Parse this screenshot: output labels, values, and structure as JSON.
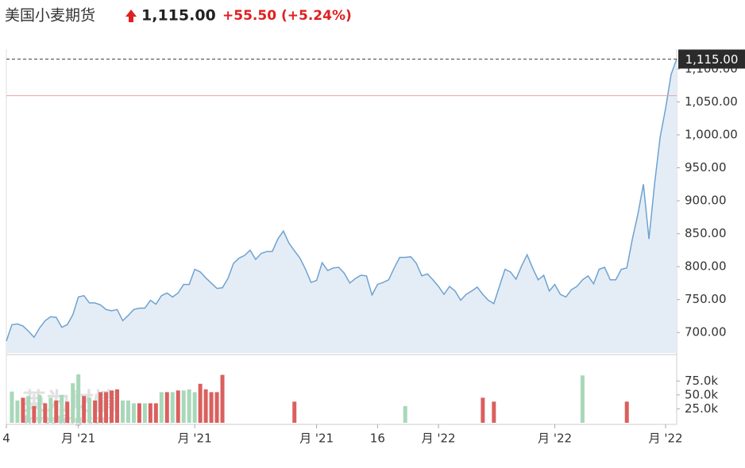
{
  "header": {
    "title": "美国小麦期货",
    "price": "1,115.00",
    "change": "+55.50",
    "change_pct": "(+5.24%)"
  },
  "chart_data": {
    "type": "area",
    "values": [
      687,
      712,
      713,
      710,
      702,
      693,
      707,
      718,
      724,
      723,
      708,
      712,
      727,
      754,
      756,
      745,
      745,
      742,
      735,
      733,
      735,
      718,
      726,
      735,
      737,
      737,
      749,
      743,
      756,
      760,
      754,
      760,
      773,
      773,
      796,
      792,
      783,
      775,
      767,
      768,
      782,
      805,
      813,
      817,
      825,
      811,
      820,
      823,
      823,
      842,
      854,
      836,
      824,
      813,
      796,
      776,
      779,
      806,
      794,
      798,
      799,
      790,
      775,
      782,
      787,
      786,
      757,
      773,
      776,
      780,
      798,
      814,
      814,
      815,
      805,
      786,
      789,
      780,
      770,
      758,
      770,
      763,
      749,
      758,
      763,
      769,
      758,
      749,
      744,
      770,
      796,
      792,
      781,
      801,
      818,
      798,
      780,
      787,
      763,
      773,
      758,
      754,
      765,
      770,
      780,
      786,
      774,
      796,
      799,
      780,
      780,
      796,
      798,
      842,
      880,
      925,
      842,
      925,
      996,
      1040,
      1092,
      1115
    ],
    "color": "#6fa2d0",
    "fill": "#e4edf6",
    "xlim": [
      0,
      121
    ],
    "xticks": [
      {
        "value": 0,
        "label": "4"
      },
      {
        "value": 13,
        "label": "月 '21"
      },
      {
        "value": 34,
        "label": "月 '21"
      },
      {
        "value": 56,
        "label": "月 '21"
      },
      {
        "value": 67,
        "label": "16"
      },
      {
        "value": 78,
        "label": "月 '22"
      },
      {
        "value": 99,
        "label": "月 '22"
      },
      {
        "value": 119,
        "label": "月 '22"
      }
    ],
    "ylim": [
      669,
      1130
    ],
    "yticks": [
      {
        "value": 700,
        "label": "700.00"
      },
      {
        "value": 750,
        "label": "750.00"
      },
      {
        "value": 800,
        "label": "800.00"
      },
      {
        "value": 850,
        "label": "850.00"
      },
      {
        "value": 900,
        "label": "900.00"
      },
      {
        "value": 950,
        "label": "950.00"
      },
      {
        "value": 1000,
        "label": "1,000.00"
      },
      {
        "value": 1050,
        "label": "1,050.00"
      },
      {
        "value": 1100,
        "label": "1,100.00"
      }
    ],
    "last": {
      "value": 1115,
      "label": "1,115.00"
    },
    "prev_close": 1059.5,
    "watermark": [
      "英为财情",
      "Investing.com"
    ],
    "volume": {
      "x": [
        1,
        2,
        3,
        4,
        5,
        6,
        7,
        8,
        9,
        10,
        11,
        12,
        13,
        14,
        15,
        16,
        17,
        18,
        19,
        20,
        21,
        22,
        23,
        24,
        25,
        26,
        27,
        28,
        29,
        30,
        31,
        32,
        33,
        34,
        35,
        36,
        37,
        38,
        39,
        52,
        72,
        86,
        88,
        104,
        112
      ],
      "values": [
        56000,
        40000,
        45000,
        48000,
        30000,
        50000,
        35000,
        45000,
        40000,
        50000,
        38000,
        71000,
        87000,
        48000,
        45000,
        40000,
        55000,
        55000,
        58000,
        60000,
        40000,
        40000,
        35000,
        35000,
        35000,
        35000,
        35000,
        55000,
        55000,
        55000,
        58000,
        58000,
        60000,
        55000,
        70000,
        60000,
        55000,
        55000,
        86000,
        38000,
        30000,
        45000,
        38000,
        85000,
        38000
      ],
      "direction": [
        "up",
        "up",
        "down",
        "up",
        "down",
        "up",
        "down",
        "up",
        "down",
        "up",
        "down",
        "up",
        "up",
        "down",
        "up",
        "down",
        "down",
        "down",
        "down",
        "down",
        "up",
        "up",
        "up",
        "down",
        "up",
        "down",
        "down",
        "up",
        "down",
        "up",
        "down",
        "up",
        "up",
        "up",
        "down",
        "down",
        "down",
        "down",
        "down",
        "down",
        "up",
        "down",
        "down",
        "up",
        "down"
      ],
      "colors": {
        "up": "#a8d8b9",
        "down": "#d9605e"
      },
      "ylim": [
        0,
        121000
      ],
      "yticks": [
        {
          "value": 25000,
          "label": "25.0k"
        },
        {
          "value": 50000,
          "label": "50.0k"
        },
        {
          "value": 75000,
          "label": "75.0k"
        }
      ]
    }
  }
}
